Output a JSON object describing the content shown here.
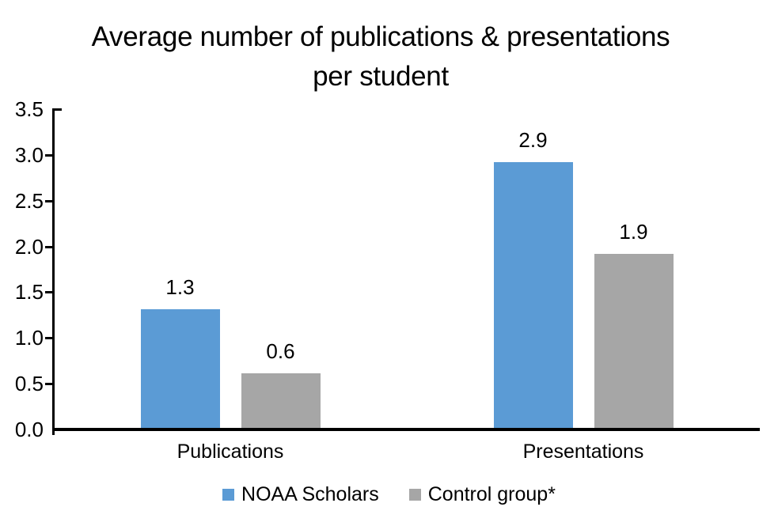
{
  "title": {
    "line1": "Average number of publications & presentations",
    "line2": "per student"
  },
  "colors": {
    "series1": "#5B9BD5",
    "series2": "#A6A6A6",
    "axis": "#000000",
    "text": "#000000",
    "background": "#FFFFFF"
  },
  "chart_data": {
    "type": "bar",
    "title": "Average number of publications & presentations per student",
    "categories": [
      "Publications",
      "Presentations"
    ],
    "series": [
      {
        "name": "NOAA Scholars",
        "color": "#5B9BD5",
        "values": [
          1.3,
          2.9
        ],
        "data_labels": [
          "1.3",
          "2.9"
        ]
      },
      {
        "name": "Control group*",
        "color": "#A6A6A6",
        "values": [
          0.6,
          1.9
        ],
        "data_labels": [
          "0.6",
          "1.9"
        ]
      }
    ],
    "xlabel": "",
    "ylabel": "",
    "ylim": [
      0,
      3.5
    ],
    "y_tick_step": 0.5,
    "y_tick_labels": [
      "0.0",
      "0.5",
      "1.0",
      "1.5",
      "2.0",
      "2.5",
      "3.0",
      "3.5"
    ],
    "grid": false,
    "data_labels_shown": true,
    "legend_position": "bottom"
  }
}
